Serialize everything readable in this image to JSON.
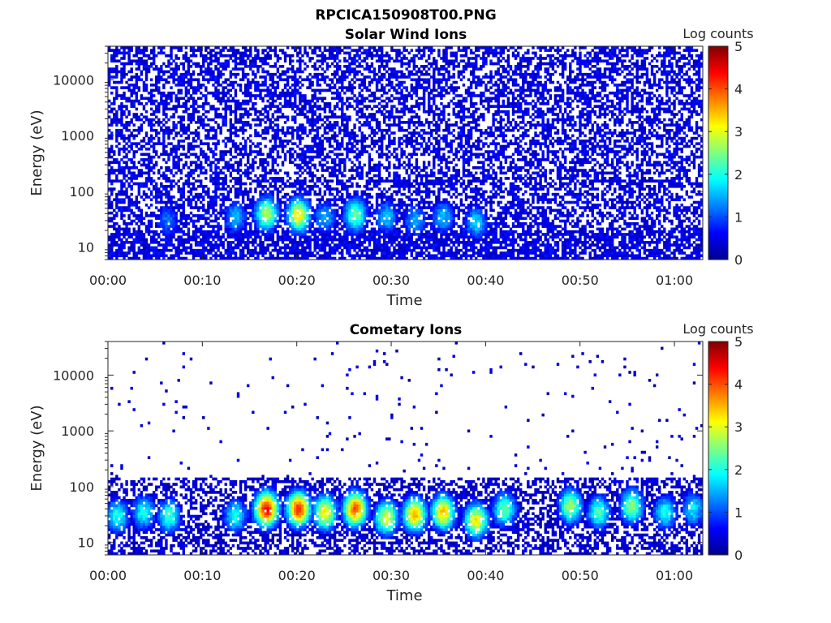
{
  "figure_title": "RPCICA150908T00.PNG",
  "chart_data": [
    {
      "type": "heatmap",
      "title": "Solar Wind Ions",
      "xlabel": "Time",
      "ylabel": "Energy (eV)",
      "y_scale": "log",
      "x_ticks": [
        "00:00",
        "00:10",
        "00:20",
        "00:30",
        "00:40",
        "00:50",
        "01:00"
      ],
      "y_ticks": [
        "10",
        "100",
        "1000",
        "10000"
      ],
      "xlim_minutes": [
        0,
        63
      ],
      "ylim_eV": [
        6,
        40000
      ],
      "colorbar": {
        "label": "Log counts",
        "range": [
          0,
          5
        ],
        "ticks": [
          "0",
          "1",
          "2",
          "3",
          "4",
          "5"
        ],
        "colormap": "jet"
      },
      "grid": false,
      "background_noise": {
        "description": "sparse low counts across all energies",
        "level_log": 0.4,
        "density": 0.55
      },
      "features": [
        {
          "t_min": 13.5,
          "energy_eV": 35,
          "log_counts": 1.6
        },
        {
          "t_min": 16.8,
          "energy_eV": 40,
          "log_counts": 2.8
        },
        {
          "t_min": 20.2,
          "energy_eV": 38,
          "log_counts": 3.2
        },
        {
          "t_min": 23.0,
          "energy_eV": 35,
          "log_counts": 1.5
        },
        {
          "t_min": 26.2,
          "energy_eV": 38,
          "log_counts": 2.4
        },
        {
          "t_min": 29.5,
          "energy_eV": 35,
          "log_counts": 1.6
        },
        {
          "t_min": 32.5,
          "energy_eV": 30,
          "log_counts": 1.5
        },
        {
          "t_min": 35.5,
          "energy_eV": 35,
          "log_counts": 1.6
        },
        {
          "t_min": 39.0,
          "energy_eV": 28,
          "log_counts": 1.7
        },
        {
          "t_min": 6.3,
          "energy_eV": 30,
          "log_counts": 1.2
        }
      ]
    },
    {
      "type": "heatmap",
      "title": "Cometary Ions",
      "xlabel": "Time",
      "ylabel": "Energy (eV)",
      "y_scale": "log",
      "x_ticks": [
        "00:00",
        "00:10",
        "00:20",
        "00:30",
        "00:40",
        "00:50",
        "01:00"
      ],
      "y_ticks": [
        "10",
        "100",
        "1000",
        "10000"
      ],
      "xlim_minutes": [
        0,
        63
      ],
      "ylim_eV": [
        6,
        40000
      ],
      "colorbar": {
        "label": "Log counts",
        "range": [
          0,
          5
        ],
        "ticks": [
          "0",
          "1",
          "2",
          "3",
          "4",
          "5"
        ],
        "colormap": "jet"
      },
      "grid": false,
      "background_noise": {
        "description": "sparse points above 200 eV, dense low counts below 150 eV",
        "level_log": 0.3,
        "density_high": 0.015,
        "density_low": 0.5
      },
      "features": [
        {
          "t_min": 1.0,
          "energy_eV": 30,
          "log_counts": 2.0
        },
        {
          "t_min": 3.8,
          "energy_eV": 35,
          "log_counts": 2.0
        },
        {
          "t_min": 6.5,
          "energy_eV": 30,
          "log_counts": 2.2
        },
        {
          "t_min": 13.5,
          "energy_eV": 30,
          "log_counts": 2.0
        },
        {
          "t_min": 16.8,
          "energy_eV": 40,
          "log_counts": 4.4
        },
        {
          "t_min": 20.2,
          "energy_eV": 40,
          "log_counts": 4.2
        },
        {
          "t_min": 23.0,
          "energy_eV": 35,
          "log_counts": 3.2
        },
        {
          "t_min": 26.2,
          "energy_eV": 40,
          "log_counts": 4.0
        },
        {
          "t_min": 29.5,
          "energy_eV": 28,
          "log_counts": 3.0
        },
        {
          "t_min": 32.5,
          "energy_eV": 32,
          "log_counts": 3.5
        },
        {
          "t_min": 35.5,
          "energy_eV": 35,
          "log_counts": 3.4
        },
        {
          "t_min": 39.0,
          "energy_eV": 25,
          "log_counts": 3.2
        },
        {
          "t_min": 42.0,
          "energy_eV": 40,
          "log_counts": 2.4
        },
        {
          "t_min": 49.0,
          "energy_eV": 45,
          "log_counts": 2.7
        },
        {
          "t_min": 52.0,
          "energy_eV": 35,
          "log_counts": 2.2
        },
        {
          "t_min": 55.5,
          "energy_eV": 45,
          "log_counts": 2.6
        },
        {
          "t_min": 59.0,
          "energy_eV": 35,
          "log_counts": 2.0
        },
        {
          "t_min": 62.0,
          "energy_eV": 40,
          "log_counts": 1.8
        }
      ]
    }
  ]
}
